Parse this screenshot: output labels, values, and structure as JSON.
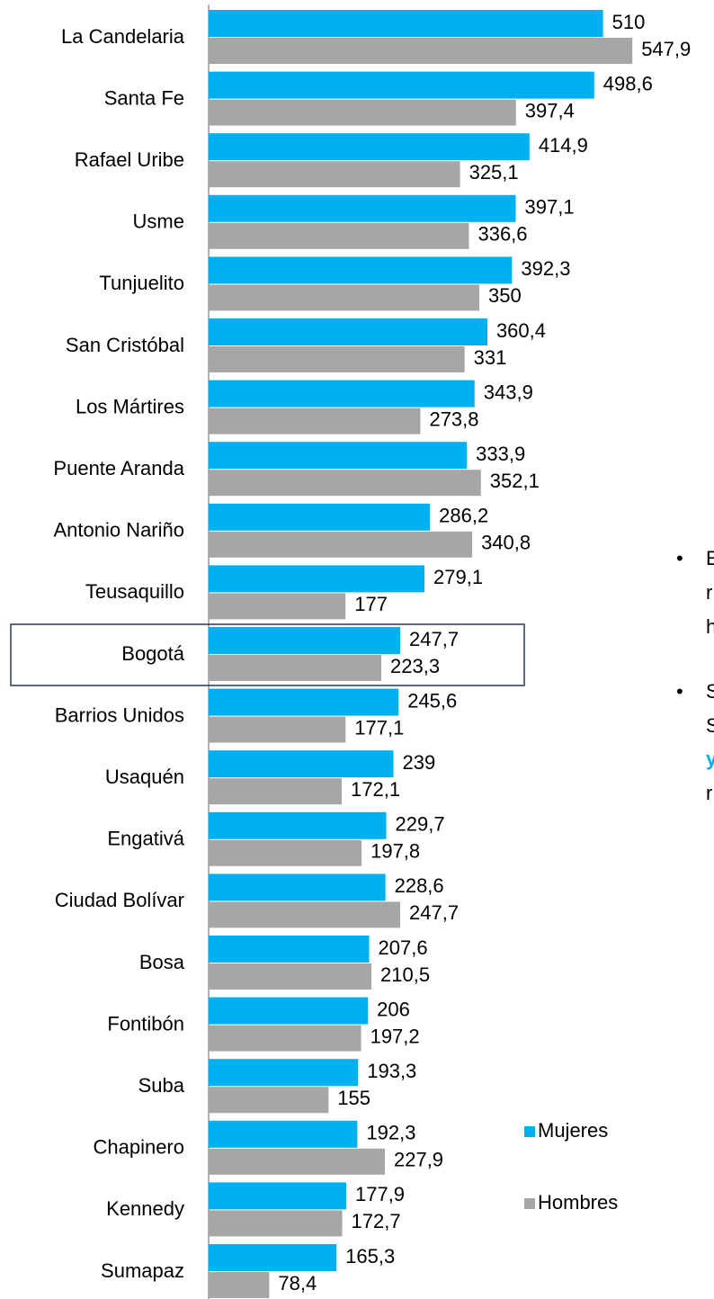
{
  "chart_data": {
    "type": "barh",
    "categories": [
      "La Candelaria",
      "Santa Fe",
      "Rafael Uribe",
      "Usme",
      "Tunjuelito",
      "San Cristóbal",
      "Los Mártires",
      "Puente Aranda",
      "Antonio Nariño",
      "Teusaquillo",
      "Bogotá",
      "Barrios Unidos",
      "Usaquén",
      "Engativá",
      "Ciudad Bolívar",
      "Bosa",
      "Fontibón",
      "Suba",
      "Chapinero",
      "Kennedy",
      "Sumapaz"
    ],
    "series": [
      {
        "name": "Mujeres",
        "color": "#00b0f0",
        "values": [
          510,
          498.6,
          414.9,
          397.1,
          392.3,
          360.4,
          343.9,
          333.9,
          286.2,
          279.1,
          247.7,
          245.6,
          239,
          229.7,
          228.6,
          207.6,
          206,
          193.3,
          192.3,
          177.9,
          165.3
        ],
        "value_labels": [
          "510",
          "498,6",
          "414,9",
          "397,1",
          "392,3",
          "360,4",
          "343,9",
          "333,9",
          "286,2",
          "279,1",
          "247,7",
          "245,6",
          "239",
          "229,7",
          "228,6",
          "207,6",
          "206",
          "193,3",
          "192,3",
          "177,9",
          "165,3"
        ]
      },
      {
        "name": "Hombres",
        "color": "#a6a6a6",
        "values": [
          547.9,
          397.4,
          325.1,
          336.6,
          350,
          331,
          273.8,
          352.1,
          340.8,
          177,
          223.3,
          177.1,
          172.1,
          197.8,
          247.7,
          210.5,
          197.2,
          155,
          227.9,
          172.7,
          78.4
        ],
        "value_labels": [
          "547,9",
          "397,4",
          "325,1",
          "336,6",
          "350",
          "331",
          "273,8",
          "352,1",
          "340,8",
          "177",
          "223,3",
          "177,1",
          "172,1",
          "197,8",
          "247,7",
          "210,5",
          "197,2",
          "155",
          "227,9",
          "172,7",
          "78,4"
        ]
      }
    ],
    "xlim": [
      0,
      600
    ],
    "highlight": "Bogotá",
    "side_text": [
      [
        "E",
        "r",
        "h"
      ],
      [
        "S",
        "S",
        "y",
        "r"
      ]
    ]
  }
}
